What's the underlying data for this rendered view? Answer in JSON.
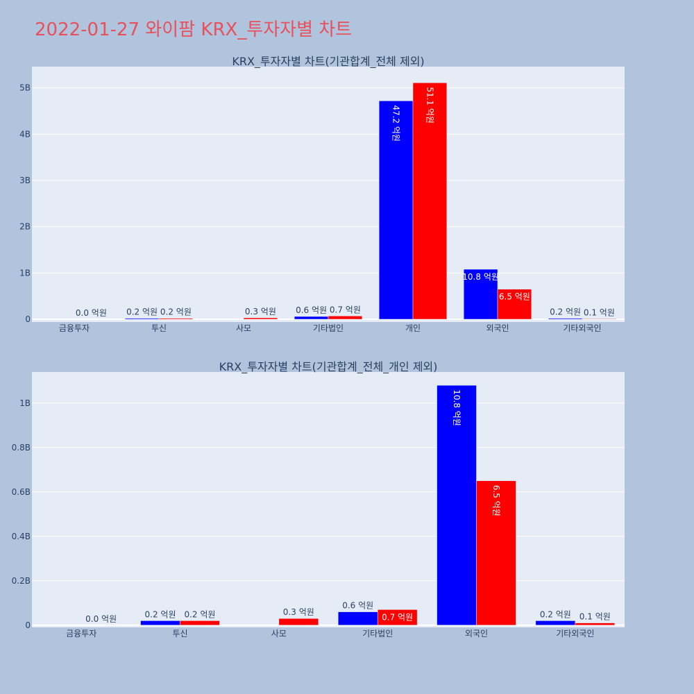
{
  "page_title": "2022-01-27 와이팜 KRX_투자자별 차트",
  "colors": {
    "background": "#b0c4de",
    "plot_bg": "#e5ecf6",
    "grid": "#ffffff",
    "series_a": "#0000ff",
    "series_b": "#ff0000",
    "title": "#e8505b"
  },
  "chart_data": [
    {
      "type": "bar",
      "title": "KRX_투자자별 차트(기관합계_전체 제외)",
      "categories": [
        "금융투자",
        "투신",
        "사모",
        "기타법인",
        "개인",
        "외국인",
        "기타외국인"
      ],
      "series": [
        {
          "color": "#0000ff",
          "values": [
            0,
            20000000,
            0,
            60000000,
            4720000000,
            1080000000,
            20000000
          ],
          "labels": [
            "",
            "0.2 억원",
            "",
            "0.6 억원",
            "47.2 억원",
            "10.8 억원",
            "0.2 억원"
          ]
        },
        {
          "color": "#ff0000",
          "values": [
            0,
            20000000,
            30000000,
            70000000,
            5110000000,
            650000000,
            10000000
          ],
          "labels": [
            "0.0 억원",
            "0.2 억원",
            "0.3 억원",
            "0.7 억원",
            "51.1 억원",
            "6.5 억원",
            "0.1 억원"
          ]
        }
      ],
      "ylim": [
        -60000000,
        5460000000
      ],
      "yticks": [
        0,
        1000000000,
        2000000000,
        3000000000,
        4000000000,
        5000000000
      ],
      "ytick_labels": [
        "0",
        "1B",
        "2B",
        "3B",
        "4B",
        "5B"
      ],
      "grid": true
    },
    {
      "type": "bar",
      "title": "KRX_투자자별 차트(기관합계_전체_개인 제외)",
      "categories": [
        "금융투자",
        "투신",
        "사모",
        "기타법인",
        "외국인",
        "기타외국인"
      ],
      "series": [
        {
          "color": "#0000ff",
          "values": [
            0,
            20000000,
            0,
            60000000,
            1080000000,
            20000000
          ],
          "labels": [
            "",
            "0.2 억원",
            "",
            "0.6 억원",
            "10.8 억원",
            "0.2 억원"
          ]
        },
        {
          "color": "#ff0000",
          "values": [
            0,
            20000000,
            30000000,
            70000000,
            650000000,
            10000000
          ],
          "labels": [
            "0.0 억원",
            "0.2 억원",
            "0.3 억원",
            "0.7 억원",
            "6.5 억원",
            "0.1 억원"
          ]
        }
      ],
      "ylim": [
        -10000000,
        1140000000
      ],
      "yticks": [
        0,
        200000000,
        400000000,
        600000000,
        800000000,
        1000000000
      ],
      "ytick_labels": [
        "0",
        "0.2B",
        "0.4B",
        "0.6B",
        "0.8B",
        "1B"
      ],
      "grid": true
    }
  ]
}
